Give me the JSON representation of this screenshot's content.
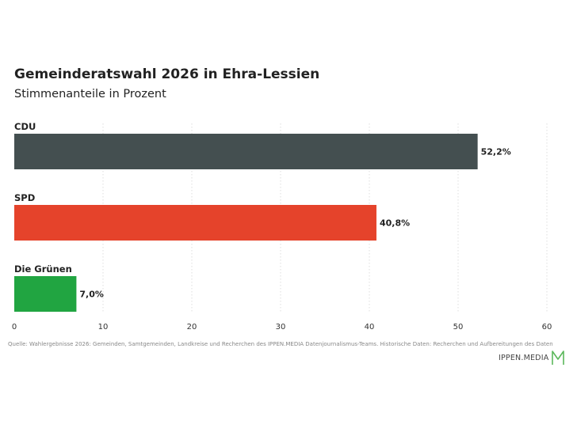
{
  "header": {
    "title": "Gemeinderatswahl 2026 in Ehra-Lessien",
    "subtitle": "Stimmenanteile in Prozent"
  },
  "footer": {
    "source": "Quelle: Wahlergebnisse 2026: Gemeinden, Samtgemeinden, Landkreise und Recherchen des IPPEN.MEDIA Datenjournalismus-Teams. Historische Daten: Recherchen und Aufbereitungen des Daten",
    "brand": "IPPEN.MEDIA",
    "brand_logo_icon": "ippen-media-m-logo-icon",
    "brand_color": "#5cb85c"
  },
  "chart_data": {
    "type": "bar",
    "orientation": "horizontal",
    "title": "Gemeinderatswahl 2026 in Ehra-Lessien",
    "subtitle": "Stimmenanteile in Prozent",
    "categories": [
      "CDU",
      "SPD",
      "Die Grünen"
    ],
    "values": [
      52.2,
      40.8,
      7.0
    ],
    "value_labels": [
      "52,2%",
      "40,8%",
      "7,0%"
    ],
    "colors": [
      "#444f50",
      "#e5432b",
      "#21a541"
    ],
    "xlim": [
      0,
      60
    ],
    "xticks": [
      0,
      10,
      20,
      30,
      40,
      50,
      60
    ],
    "xtick_labels": [
      "0",
      "10",
      "20",
      "30",
      "40",
      "50",
      "60"
    ],
    "grid": "vertical-dotted"
  }
}
